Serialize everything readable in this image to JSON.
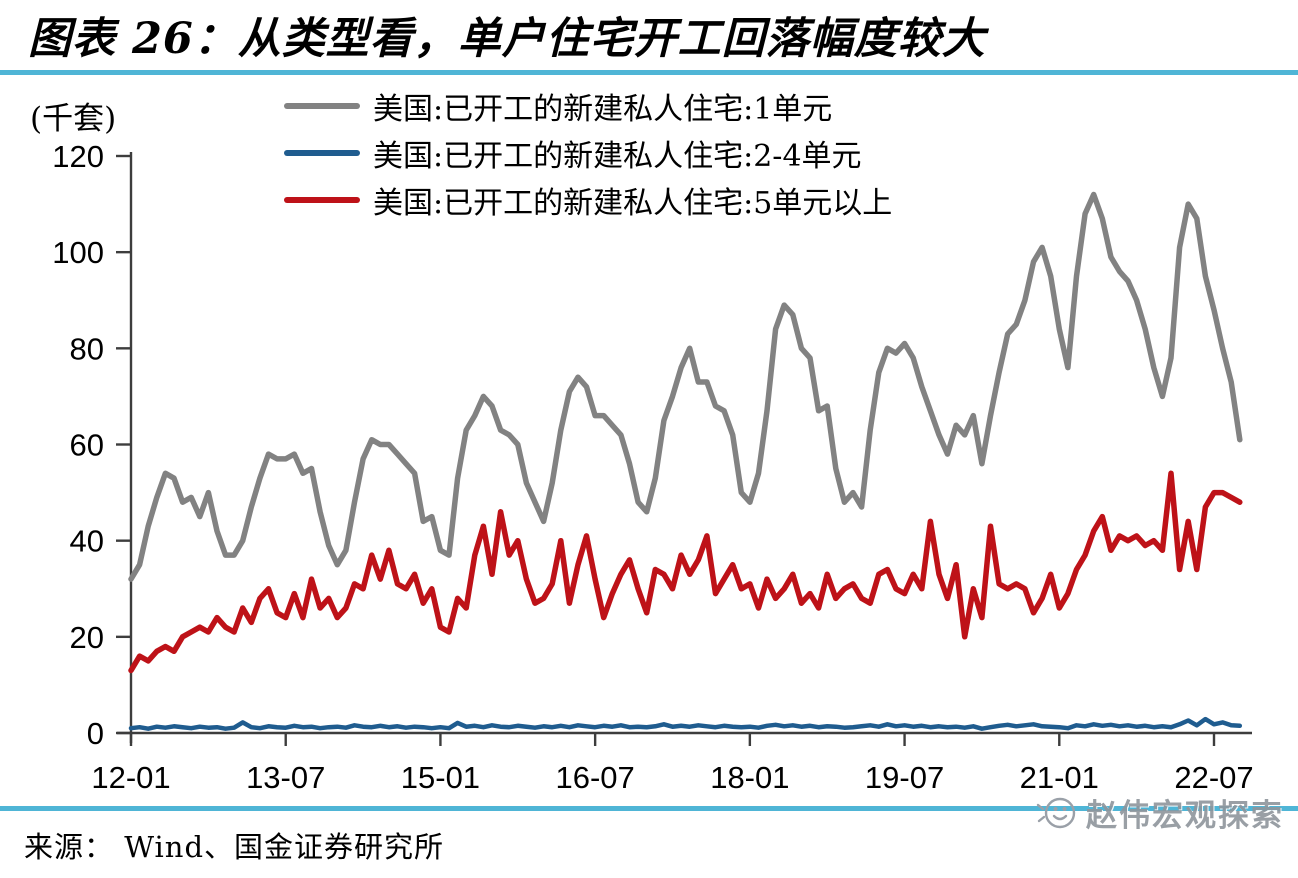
{
  "header": {
    "title": "图表 26：从类型看，单户住宅开工回落幅度较大"
  },
  "footer": {
    "source": "来源： Wind、国金证券研究所",
    "watermark": "赵伟宏观探索"
  },
  "colors": {
    "divider": "#4FB5D6",
    "axis": "#3d3d3d",
    "series_gray": "#828282",
    "series_blue": "#1F5C8F",
    "series_red": "#BE1218",
    "watermark_gray": "#8f959c"
  },
  "chart_data": {
    "type": "line",
    "unit_label": "(千套)",
    "frequency": "monthly",
    "x_start": "2012-01",
    "x_end": "2022-10",
    "x_tick_labels": [
      "12-01",
      "13-07",
      "15-01",
      "16-07",
      "18-01",
      "19-07",
      "21-01",
      "22-07"
    ],
    "x_tick_month_index": [
      0,
      18,
      36,
      54,
      72,
      90,
      108,
      126
    ],
    "y_ticks": [
      0,
      20,
      40,
      60,
      80,
      100,
      120
    ],
    "ylim": [
      0,
      120
    ],
    "grid": false,
    "legend_position": "top-center",
    "series": [
      {
        "name": "美国:已开工的新建私人住宅:1单元",
        "color": "#828282",
        "values": [
          32,
          35,
          43,
          49,
          54,
          53,
          48,
          49,
          45,
          50,
          42,
          37,
          37,
          40,
          47,
          53,
          58,
          57,
          57,
          58,
          54,
          55,
          46,
          39,
          35,
          38,
          48,
          57,
          61,
          60,
          60,
          58,
          56,
          54,
          44,
          45,
          38,
          37,
          53,
          63,
          66,
          70,
          68,
          63,
          62,
          60,
          52,
          48,
          44,
          52,
          63,
          71,
          74,
          72,
          66,
          66,
          64,
          62,
          56,
          48,
          46,
          53,
          65,
          70,
          76,
          80,
          73,
          73,
          68,
          67,
          62,
          50,
          48,
          54,
          67,
          84,
          89,
          87,
          80,
          78,
          67,
          68,
          55,
          48,
          50,
          47,
          63,
          75,
          80,
          79,
          81,
          78,
          72,
          67,
          62,
          58,
          64,
          62,
          66,
          56,
          66,
          75,
          83,
          85,
          90,
          98,
          101,
          95,
          84,
          76,
          95,
          108,
          112,
          107,
          99,
          96,
          94,
          90,
          84,
          76,
          70,
          78,
          101,
          110,
          107,
          95,
          88,
          80,
          73,
          61
        ]
      },
      {
        "name": "美国:已开工的新建私人住宅:2-4单元",
        "color": "#1F5C8F",
        "values": [
          1.0,
          1.2,
          0.9,
          1.3,
          1.1,
          1.4,
          1.2,
          1.0,
          1.3,
          1.1,
          1.2,
          0.9,
          1.1,
          2.2,
          1.2,
          1.0,
          1.4,
          1.2,
          1.1,
          1.5,
          1.2,
          1.3,
          1.0,
          1.2,
          1.3,
          1.1,
          1.6,
          1.3,
          1.2,
          1.5,
          1.2,
          1.4,
          1.1,
          1.3,
          1.2,
          1.0,
          1.2,
          1.0,
          2.1,
          1.3,
          1.5,
          1.2,
          1.6,
          1.3,
          1.2,
          1.5,
          1.3,
          1.1,
          1.4,
          1.2,
          1.5,
          1.2,
          1.6,
          1.4,
          1.2,
          1.5,
          1.3,
          1.6,
          1.2,
          1.3,
          1.2,
          1.4,
          1.8,
          1.3,
          1.5,
          1.3,
          1.6,
          1.4,
          1.2,
          1.5,
          1.3,
          1.2,
          1.3,
          1.1,
          1.5,
          1.7,
          1.4,
          1.6,
          1.3,
          1.5,
          1.2,
          1.4,
          1.3,
          1.1,
          1.2,
          1.4,
          1.6,
          1.3,
          1.8,
          1.4,
          1.6,
          1.3,
          1.5,
          1.2,
          1.4,
          1.2,
          1.3,
          1.1,
          1.4,
          0.9,
          1.2,
          1.5,
          1.7,
          1.4,
          1.6,
          1.8,
          1.4,
          1.3,
          1.2,
          1.0,
          1.6,
          1.4,
          1.8,
          1.5,
          1.7,
          1.4,
          1.6,
          1.3,
          1.5,
          1.2,
          1.4,
          1.2,
          1.8,
          2.6,
          1.6,
          2.9,
          1.8,
          2.2,
          1.6,
          1.5
        ]
      },
      {
        "name": "美国:已开工的新建私人住宅:5单元以上",
        "color": "#BE1218",
        "values": [
          13,
          16,
          15,
          17,
          18,
          17,
          20,
          21,
          22,
          21,
          24,
          22,
          21,
          26,
          23,
          28,
          30,
          25,
          24,
          29,
          24,
          32,
          26,
          28,
          24,
          26,
          31,
          30,
          37,
          32,
          38,
          31,
          30,
          33,
          27,
          30,
          22,
          21,
          28,
          26,
          37,
          43,
          33,
          46,
          37,
          40,
          32,
          27,
          28,
          31,
          40,
          27,
          35,
          41,
          32,
          24,
          29,
          33,
          36,
          30,
          25,
          34,
          33,
          30,
          37,
          33,
          36,
          41,
          29,
          32,
          35,
          30,
          31,
          26,
          32,
          28,
          30,
          33,
          27,
          29,
          26,
          33,
          28,
          30,
          31,
          28,
          27,
          33,
          34,
          30,
          29,
          33,
          30,
          44,
          33,
          28,
          35,
          20,
          30,
          24,
          43,
          31,
          30,
          31,
          30,
          25,
          28,
          33,
          26,
          29,
          34,
          37,
          42,
          45,
          38,
          41,
          40,
          41,
          39,
          40,
          38,
          54,
          34,
          44,
          34,
          47,
          50,
          50,
          49,
          48
        ]
      }
    ]
  }
}
